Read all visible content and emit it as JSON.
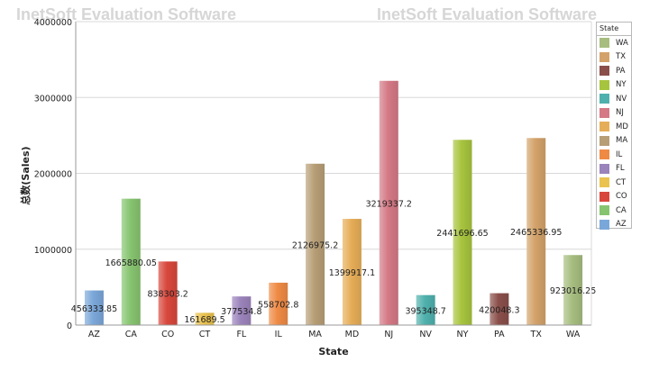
{
  "watermark": {
    "left": "InetSoft Evaluation Software",
    "right": "InetSoft Evaluation Software"
  },
  "chart_data": {
    "type": "bar",
    "title": "",
    "xlabel": "State",
    "ylabel": "总数(Sales)",
    "categories": [
      "AZ",
      "CA",
      "CO",
      "CT",
      "FL",
      "IL",
      "MA",
      "MD",
      "NJ",
      "NV",
      "NY",
      "PA",
      "TX",
      "WA"
    ],
    "values": [
      456333.85,
      1665880.05,
      838303.2,
      161689.5,
      377534.8,
      558702.8,
      2126975.2,
      1399917.1,
      3219337.2,
      395348.7,
      2441696.65,
      420048.3,
      2465336.95,
      923016.25
    ],
    "data_labels": [
      "456333.85",
      "1665880.05",
      "838303.2",
      "161689.5",
      "377534.8",
      "558702.8",
      "2126975.2",
      "1399917.1",
      "3219337.2",
      "395348.7",
      "2441696.65",
      "420048.3",
      "2465336.95",
      "923016.25"
    ],
    "colors": [
      "#7aa7d9",
      "#86c46f",
      "#d9473c",
      "#e9c24f",
      "#9b83bb",
      "#ef8a45",
      "#b79e76",
      "#e6ad58",
      "#d47985",
      "#4fb1ad",
      "#a7c43e",
      "#8a4f4a",
      "#d3a26a",
      "#a6bd7f"
    ],
    "yticks": [
      "0",
      "1000000",
      "2000000",
      "3000000",
      "4000000"
    ],
    "ylim": [
      0,
      4000000
    ],
    "grid": true,
    "legend": {
      "title": "State",
      "placement": "right",
      "items": [
        {
          "label": "WA",
          "color": "#a6bd7f"
        },
        {
          "label": "TX",
          "color": "#d3a26a"
        },
        {
          "label": "PA",
          "color": "#8a4f4a"
        },
        {
          "label": "NY",
          "color": "#a7c43e"
        },
        {
          "label": "NV",
          "color": "#4fb1ad"
        },
        {
          "label": "NJ",
          "color": "#d47985"
        },
        {
          "label": "MD",
          "color": "#e6ad58"
        },
        {
          "label": "MA",
          "color": "#b79e76"
        },
        {
          "label": "IL",
          "color": "#ef8a45"
        },
        {
          "label": "FL",
          "color": "#9b83bb"
        },
        {
          "label": "CT",
          "color": "#e9c24f"
        },
        {
          "label": "CO",
          "color": "#d9473c"
        },
        {
          "label": "CA",
          "color": "#86c46f"
        },
        {
          "label": "AZ",
          "color": "#7aa7d9"
        }
      ]
    }
  }
}
